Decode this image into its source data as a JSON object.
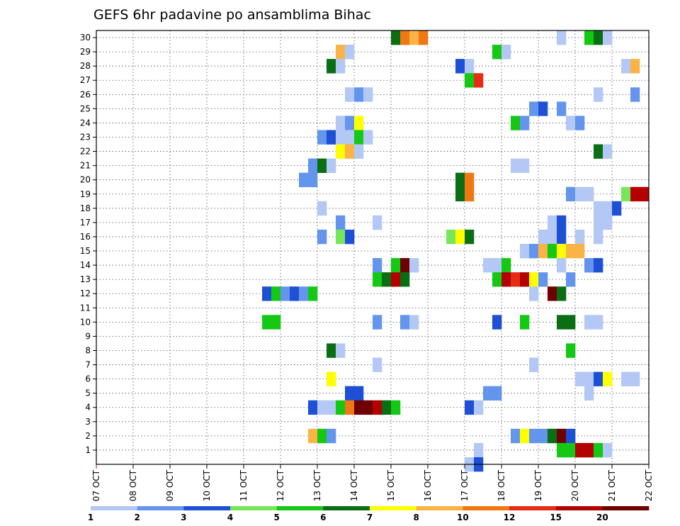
{
  "chart_data": {
    "type": "heatmap",
    "title": "GEFS 6hr padavine po ansamblima Bihac",
    "x_categories": [
      "07 OCT",
      "08 OCT",
      "09 OCT",
      "10 OCT",
      "11 OCT",
      "12 OCT",
      "13 OCT",
      "14 OCT",
      "15 OCT",
      "16 OCT",
      "17 OCT",
      "18 OCT",
      "19 OCT",
      "20 OCT",
      "21 OCT",
      "22 OCT"
    ],
    "y_categories": [
      1,
      2,
      3,
      4,
      5,
      6,
      7,
      8,
      9,
      10,
      11,
      12,
      13,
      14,
      15,
      16,
      17,
      18,
      19,
      20,
      21,
      22,
      23,
      24,
      25,
      26,
      27,
      28,
      29,
      30
    ],
    "xlim": [
      "07 OCT",
      "22 OCT"
    ],
    "ylim": [
      0,
      30
    ],
    "grid": true,
    "time_step_hours": 6,
    "colorbar": {
      "labels": [
        "1",
        "2",
        "3",
        "4",
        "5",
        "6",
        "7",
        "8",
        "10",
        "12",
        "15",
        "20"
      ],
      "colors": [
        "#b4c8f5",
        "#6495ed",
        "#1e50d6",
        "#78e65a",
        "#14c814",
        "#0a6e14",
        "#ffff00",
        "#fab446",
        "#f07814",
        "#e62d14",
        "#b40000",
        "#6e0000"
      ]
    },
    "cells": [
      {
        "member": 30,
        "start": "15 OCT 00Z",
        "values": [
          6,
          10,
          8,
          11
        ]
      },
      {
        "member": 30,
        "start": "19 OCT 12Z",
        "values": [
          1
        ]
      },
      {
        "member": 30,
        "start": "20 OCT 06Z",
        "values": [
          5,
          6,
          1
        ]
      },
      {
        "member": 29,
        "start": "13 OCT 12Z",
        "values": [
          9,
          1
        ]
      },
      {
        "member": 29,
        "start": "17 OCT 18Z",
        "values": [
          5,
          1
        ]
      },
      {
        "member": 28,
        "start": "13 OCT 06Z",
        "values": [
          6,
          1
        ]
      },
      {
        "member": 28,
        "start": "16 OCT 18Z",
        "values": [
          3,
          1
        ]
      },
      {
        "member": 28,
        "start": "21 OCT 06Z",
        "values": [
          1,
          9
        ]
      },
      {
        "member": 27,
        "start": "17 OCT 00Z",
        "values": [
          5,
          12
        ]
      },
      {
        "member": 26,
        "start": "13 OCT 18Z",
        "values": [
          1,
          2,
          1
        ]
      },
      {
        "member": 26,
        "start": "20 OCT 12Z",
        "values": [
          1
        ]
      },
      {
        "member": 26,
        "start": "21 OCT 12Z",
        "values": [
          2
        ]
      },
      {
        "member": 25,
        "start": "18 OCT 18Z",
        "values": [
          2,
          3
        ]
      },
      {
        "member": 25,
        "start": "19 OCT 12Z",
        "values": [
          2
        ]
      },
      {
        "member": 24,
        "start": "13 OCT 12Z",
        "values": [
          1,
          2,
          7
        ]
      },
      {
        "member": 24,
        "start": "18 OCT 06Z",
        "values": [
          5,
          2
        ]
      },
      {
        "member": 24,
        "start": "19 OCT 18Z",
        "values": [
          1,
          2
        ]
      },
      {
        "member": 23,
        "start": "13 OCT 00Z",
        "values": [
          2,
          3,
          1,
          1,
          5,
          1
        ]
      },
      {
        "member": 22,
        "start": "13 OCT 12Z",
        "values": [
          7,
          8,
          1
        ]
      },
      {
        "member": 22,
        "start": "20 OCT 12Z",
        "values": [
          6,
          1
        ]
      },
      {
        "member": 21,
        "start": "12 OCT 18Z",
        "values": [
          2,
          6,
          1
        ]
      },
      {
        "member": 21,
        "start": "18 OCT 06Z",
        "values": [
          1,
          1
        ]
      },
      {
        "member": 20,
        "start": "12 OCT 12Z",
        "values": [
          2,
          2
        ]
      },
      {
        "member": 20,
        "start": "16 OCT 18Z",
        "values": [
          6,
          10
        ]
      },
      {
        "member": 19,
        "start": "16 OCT 18Z",
        "values": [
          6,
          10
        ]
      },
      {
        "member": 19,
        "start": "19 OCT 18Z",
        "values": [
          2,
          1,
          1
        ]
      },
      {
        "member": 19,
        "start": "21 OCT 06Z",
        "values": [
          4,
          15,
          15
        ]
      },
      {
        "member": 18,
        "start": "13 OCT 00Z",
        "values": [
          1
        ]
      },
      {
        "member": 18,
        "start": "20 OCT 12Z",
        "values": [
          1,
          1,
          3
        ]
      },
      {
        "member": 17,
        "start": "13 OCT 12Z",
        "values": [
          2
        ]
      },
      {
        "member": 17,
        "start": "14 OCT 12Z",
        "values": [
          1
        ]
      },
      {
        "member": 17,
        "start": "19 OCT 06Z",
        "values": [
          1,
          3
        ]
      },
      {
        "member": 17,
        "start": "20 OCT 12Z",
        "values": [
          1,
          1
        ]
      },
      {
        "member": 16,
        "start": "13 OCT 00Z",
        "values": [
          2
        ]
      },
      {
        "member": 16,
        "start": "13 OCT 12Z",
        "values": [
          4,
          3
        ]
      },
      {
        "member": 16,
        "start": "16 OCT 12Z",
        "values": [
          4,
          7,
          6
        ]
      },
      {
        "member": 16,
        "start": "19 OCT 00Z",
        "values": [
          1,
          1,
          3
        ]
      },
      {
        "member": 16,
        "start": "20 OCT 00Z",
        "values": [
          1
        ]
      },
      {
        "member": 16,
        "start": "20 OCT 12Z",
        "values": [
          1
        ]
      },
      {
        "member": 15,
        "start": "18 OCT 12Z",
        "values": [
          1,
          2,
          8,
          5,
          7,
          8,
          8
        ]
      },
      {
        "member": 14,
        "start": "14 OCT 12Z",
        "values": [
          2
        ]
      },
      {
        "member": 14,
        "start": "15 OCT 00Z",
        "values": [
          5,
          20,
          1
        ]
      },
      {
        "member": 14,
        "start": "17 OCT 12Z",
        "values": [
          1,
          1,
          5
        ]
      },
      {
        "member": 14,
        "start": "19 OCT 12Z",
        "values": [
          1
        ]
      },
      {
        "member": 14,
        "start": "20 OCT 06Z",
        "values": [
          2,
          3
        ]
      },
      {
        "member": 13,
        "start": "14 OCT 12Z",
        "values": [
          5,
          6,
          15,
          6
        ]
      },
      {
        "member": 13,
        "start": "17 OCT 18Z",
        "values": [
          5,
          15,
          12,
          15,
          7,
          2
        ]
      },
      {
        "member": 13,
        "start": "19 OCT 18Z",
        "values": [
          2
        ]
      },
      {
        "member": 12,
        "start": "11 OCT 12Z",
        "values": [
          3,
          5,
          2,
          3,
          2,
          5
        ]
      },
      {
        "member": 12,
        "start": "18 OCT 18Z",
        "values": [
          1
        ]
      },
      {
        "member": 12,
        "start": "19 OCT 06Z",
        "values": [
          20,
          6
        ]
      },
      {
        "member": 10,
        "start": "11 OCT 12Z",
        "values": [
          5,
          5
        ]
      },
      {
        "member": 10,
        "start": "14 OCT 12Z",
        "values": [
          2
        ]
      },
      {
        "member": 10,
        "start": "15 OCT 06Z",
        "values": [
          2,
          1
        ]
      },
      {
        "member": 10,
        "start": "17 OCT 18Z",
        "values": [
          3
        ]
      },
      {
        "member": 10,
        "start": "18 OCT 12Z",
        "values": [
          5
        ]
      },
      {
        "member": 10,
        "start": "19 OCT 12Z",
        "values": [
          6,
          6
        ]
      },
      {
        "member": 10,
        "start": "20 OCT 06Z",
        "values": [
          1,
          1
        ]
      },
      {
        "member": 8,
        "start": "13 OCT 06Z",
        "values": [
          6,
          1
        ]
      },
      {
        "member": 8,
        "start": "19 OCT 18Z",
        "values": [
          5
        ]
      },
      {
        "member": 7,
        "start": "14 OCT 12Z",
        "values": [
          1
        ]
      },
      {
        "member": 7,
        "start": "18 OCT 18Z",
        "values": [
          1
        ]
      },
      {
        "member": 6,
        "start": "13 OCT 06Z",
        "values": [
          7
        ]
      },
      {
        "member": 6,
        "start": "20 OCT 00Z",
        "values": [
          1,
          1,
          3,
          7
        ]
      },
      {
        "member": 6,
        "start": "21 OCT 06Z",
        "values": [
          1,
          1
        ]
      },
      {
        "member": 5,
        "start": "13 OCT 18Z",
        "values": [
          3,
          3
        ]
      },
      {
        "member": 5,
        "start": "17 OCT 12Z",
        "values": [
          2,
          2
        ]
      },
      {
        "member": 5,
        "start": "20 OCT 06Z",
        "values": [
          1
        ]
      },
      {
        "member": 4,
        "start": "12 OCT 18Z",
        "values": [
          3,
          1,
          1,
          5,
          10,
          20,
          20,
          15,
          6,
          5
        ]
      },
      {
        "member": 4,
        "start": "17 OCT 00Z",
        "values": [
          3,
          1
        ]
      },
      {
        "member": 2,
        "start": "12 OCT 18Z",
        "values": [
          8,
          5,
          2
        ]
      },
      {
        "member": 2,
        "start": "18 OCT 06Z",
        "values": [
          2,
          7,
          2,
          2,
          6,
          20,
          3
        ]
      },
      {
        "member": 1,
        "start": "17 OCT 06Z",
        "values": [
          1
        ]
      },
      {
        "member": 1,
        "start": "19 OCT 12Z",
        "values": [
          5,
          5,
          15,
          15,
          5,
          1
        ]
      },
      {
        "member": 0,
        "start": "17 OCT 00Z",
        "values": [
          1,
          3
        ]
      }
    ]
  }
}
